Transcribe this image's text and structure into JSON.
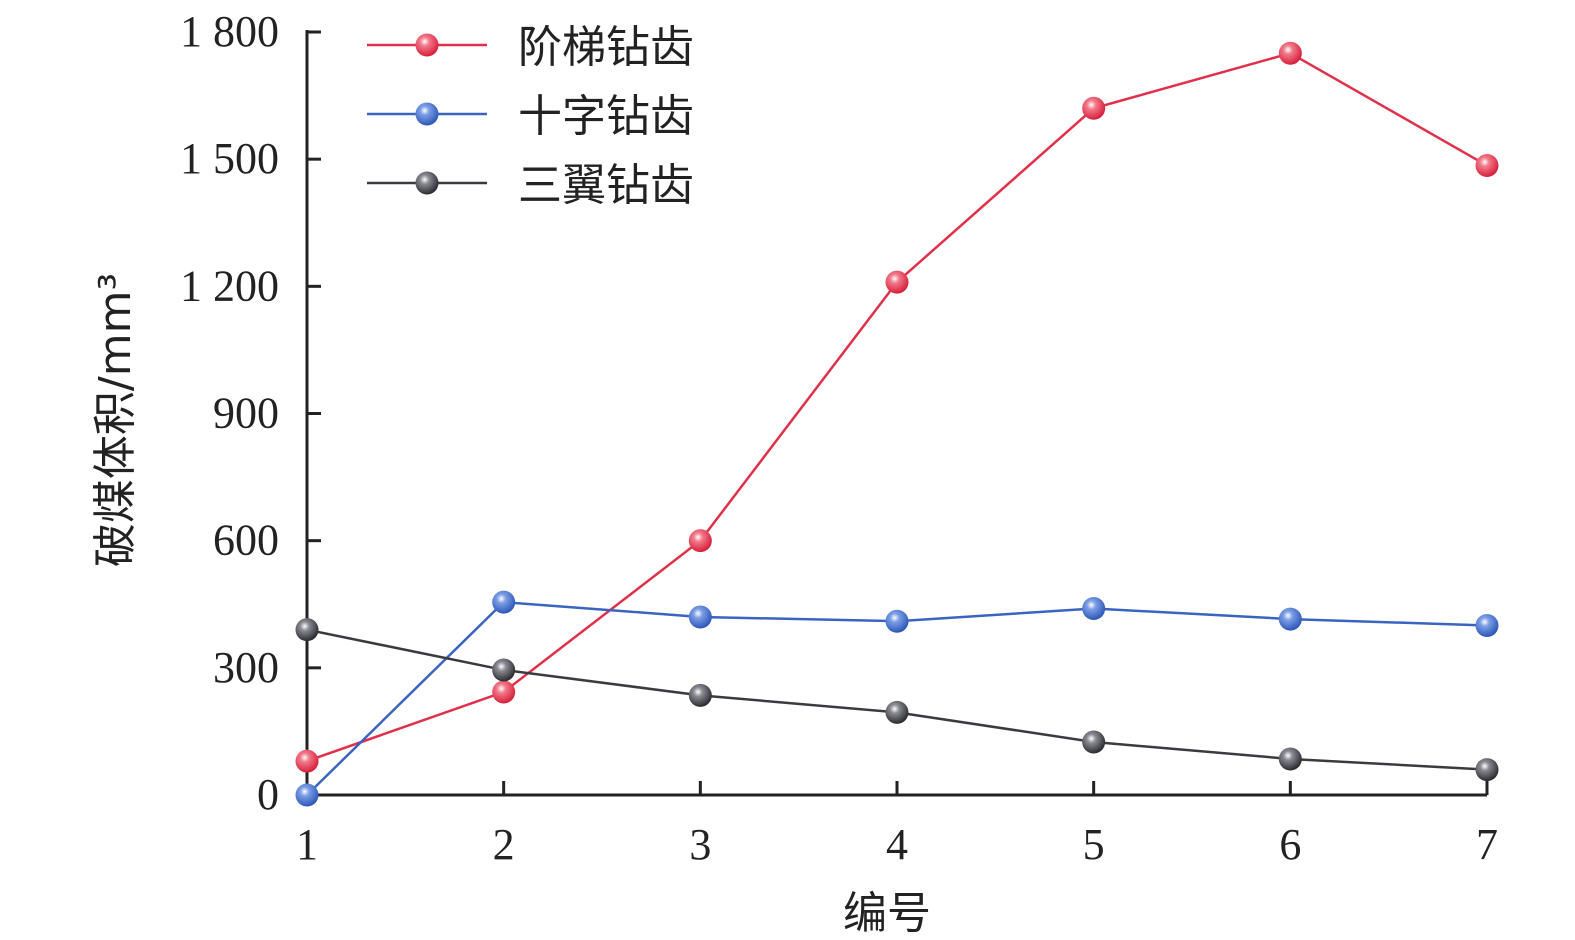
{
  "chart_data": {
    "type": "line",
    "xlabel": "编号",
    "ylabel": "破煤体积/mm³",
    "x": [
      1,
      2,
      3,
      4,
      5,
      6,
      7
    ],
    "xticks": [
      "1",
      "2",
      "3",
      "4",
      "5",
      "6",
      "7"
    ],
    "yticks": [
      "0",
      "300",
      "600",
      "900",
      "1 200",
      "1 500",
      "1 800"
    ],
    "ylim": [
      0,
      1800
    ],
    "xlim": [
      1,
      7
    ],
    "grid": false,
    "legend_position": "top-left",
    "series": [
      {
        "name": "阶梯钻齿",
        "color": "#e0304a",
        "values": [
          80,
          243,
          600,
          1210,
          1620,
          1750,
          1485
        ]
      },
      {
        "name": "十字钻齿",
        "color": "#3a64c0",
        "values": [
          0,
          455,
          420,
          410,
          440,
          415,
          400
        ]
      },
      {
        "name": "三翼钻齿",
        "color": "#3a3a40",
        "values": [
          390,
          295,
          235,
          195,
          125,
          85,
          60
        ]
      }
    ]
  }
}
